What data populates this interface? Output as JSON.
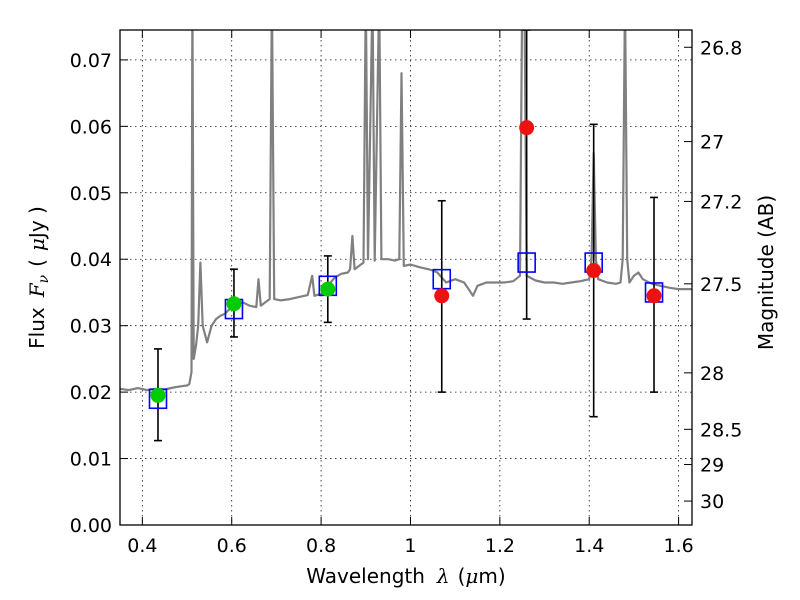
{
  "chart_data": {
    "type": "scatter",
    "title": "",
    "xlabel": "Wavelength",
    "xlabel_symbol": "λ",
    "xlabel_unit_open": "(",
    "xlabel_unit_mu": "μ",
    "xlabel_unit_rest": "m)",
    "ylabel": "Flux",
    "ylabel_symbol": "F",
    "ylabel_symbol_sub": "ν",
    "ylabel_unit_open": "(",
    "ylabel_unit_mu": "μ",
    "ylabel_unit_rest": "Jy )",
    "y2label": "Magnitude (AB)",
    "xlim": [
      0.35,
      1.63
    ],
    "ylim": [
      0.0,
      0.0745
    ],
    "grid": true,
    "x_ticks": [
      {
        "value": 0.4,
        "label": "0.4"
      },
      {
        "value": 0.6,
        "label": "0.6"
      },
      {
        "value": 0.8,
        "label": "0.8"
      },
      {
        "value": 1.0,
        "label": "1"
      },
      {
        "value": 1.2,
        "label": "1.2"
      },
      {
        "value": 1.4,
        "label": "1.4"
      },
      {
        "value": 1.6,
        "label": "1.6"
      }
    ],
    "y_ticks": [
      {
        "value": 0.0,
        "label": "0.00"
      },
      {
        "value": 0.01,
        "label": "0.01"
      },
      {
        "value": 0.02,
        "label": "0.02"
      },
      {
        "value": 0.03,
        "label": "0.03"
      },
      {
        "value": 0.04,
        "label": "0.04"
      },
      {
        "value": 0.05,
        "label": "0.05"
      },
      {
        "value": 0.06,
        "label": "0.06"
      },
      {
        "value": 0.07,
        "label": "0.07"
      }
    ],
    "y2_ticks": [
      {
        "flux": 0.0719,
        "label": "26.8"
      },
      {
        "flux": 0.0577,
        "label": "27"
      },
      {
        "flux": 0.0487,
        "label": "27.2"
      },
      {
        "flux": 0.0363,
        "label": "27.5"
      },
      {
        "flux": 0.0229,
        "label": "28"
      },
      {
        "flux": 0.0144,
        "label": "28.5"
      },
      {
        "flux": 0.0091,
        "label": "29"
      },
      {
        "flux": 0.0036,
        "label": "30"
      }
    ],
    "spectrum": {
      "color": "#808080",
      "points": [
        [
          0.35,
          0.0205
        ],
        [
          0.37,
          0.0203
        ],
        [
          0.39,
          0.0206
        ],
        [
          0.41,
          0.0203
        ],
        [
          0.43,
          0.0205
        ],
        [
          0.45,
          0.0204
        ],
        [
          0.47,
          0.0207
        ],
        [
          0.49,
          0.0209
        ],
        [
          0.5,
          0.021
        ],
        [
          0.505,
          0.0212
        ],
        [
          0.51,
          0.023
        ],
        [
          0.512,
          0.08
        ],
        [
          0.515,
          0.025
        ],
        [
          0.52,
          0.027
        ],
        [
          0.525,
          0.03
        ],
        [
          0.53,
          0.0395
        ],
        [
          0.535,
          0.03
        ],
        [
          0.545,
          0.0275
        ],
        [
          0.555,
          0.03
        ],
        [
          0.565,
          0.031
        ],
        [
          0.575,
          0.0315
        ],
        [
          0.585,
          0.0318
        ],
        [
          0.595,
          0.0325
        ],
        [
          0.61,
          0.0333
        ],
        [
          0.625,
          0.0335
        ],
        [
          0.64,
          0.033
        ],
        [
          0.655,
          0.0328
        ],
        [
          0.66,
          0.037
        ],
        [
          0.665,
          0.033
        ],
        [
          0.675,
          0.0335
        ],
        [
          0.685,
          0.034
        ],
        [
          0.69,
          0.08
        ],
        [
          0.695,
          0.034
        ],
        [
          0.71,
          0.0338
        ],
        [
          0.73,
          0.034
        ],
        [
          0.75,
          0.0343
        ],
        [
          0.77,
          0.0346
        ],
        [
          0.78,
          0.0375
        ],
        [
          0.785,
          0.0345
        ],
        [
          0.8,
          0.0348
        ],
        [
          0.815,
          0.036
        ],
        [
          0.83,
          0.0372
        ],
        [
          0.845,
          0.0378
        ],
        [
          0.86,
          0.038
        ],
        [
          0.865,
          0.0385
        ],
        [
          0.87,
          0.0435
        ],
        [
          0.875,
          0.0385
        ],
        [
          0.885,
          0.039
        ],
        [
          0.895,
          0.0395
        ],
        [
          0.9,
          0.08
        ],
        [
          0.905,
          0.04
        ],
        [
          0.915,
          0.08
        ],
        [
          0.92,
          0.0398
        ],
        [
          0.93,
          0.08
        ],
        [
          0.935,
          0.04
        ],
        [
          0.95,
          0.04
        ],
        [
          0.965,
          0.0398
        ],
        [
          0.975,
          0.04
        ],
        [
          0.98,
          0.068
        ],
        [
          0.985,
          0.039
        ],
        [
          1.0,
          0.0392
        ],
        [
          1.02,
          0.0388
        ],
        [
          1.04,
          0.0385
        ],
        [
          1.05,
          0.0383
        ],
        [
          1.06,
          0.038
        ],
        [
          1.08,
          0.0365
        ],
        [
          1.1,
          0.037
        ],
        [
          1.12,
          0.0365
        ],
        [
          1.13,
          0.0355
        ],
        [
          1.14,
          0.0345
        ],
        [
          1.15,
          0.036
        ],
        [
          1.17,
          0.0365
        ],
        [
          1.19,
          0.0365
        ],
        [
          1.21,
          0.0365
        ],
        [
          1.23,
          0.0367
        ],
        [
          1.245,
          0.0375
        ],
        [
          1.25,
          0.08
        ],
        [
          1.255,
          0.08
        ],
        [
          1.26,
          0.0375
        ],
        [
          1.28,
          0.0368
        ],
        [
          1.3,
          0.0365
        ],
        [
          1.32,
          0.0365
        ],
        [
          1.34,
          0.0363
        ],
        [
          1.36,
          0.0365
        ],
        [
          1.38,
          0.0367
        ],
        [
          1.4,
          0.037
        ],
        [
          1.405,
          0.04
        ],
        [
          1.41,
          0.056
        ],
        [
          1.415,
          0.04
        ],
        [
          1.42,
          0.037
        ],
        [
          1.44,
          0.0365
        ],
        [
          1.46,
          0.0363
        ],
        [
          1.47,
          0.0365
        ],
        [
          1.475,
          0.04
        ],
        [
          1.48,
          0.08
        ],
        [
          1.485,
          0.04
        ],
        [
          1.49,
          0.0365
        ],
        [
          1.5,
          0.0375
        ],
        [
          1.51,
          0.038
        ],
        [
          1.52,
          0.037
        ],
        [
          1.54,
          0.0363
        ],
        [
          1.56,
          0.036
        ],
        [
          1.58,
          0.0357
        ],
        [
          1.6,
          0.0355
        ],
        [
          1.63,
          0.0355
        ]
      ]
    },
    "model_points": {
      "marker": "open-square",
      "color": "#0000ff",
      "points": [
        [
          0.435,
          0.019
        ],
        [
          0.605,
          0.0325
        ],
        [
          0.815,
          0.036
        ],
        [
          1.07,
          0.037
        ],
        [
          1.26,
          0.0395
        ],
        [
          1.41,
          0.0395
        ],
        [
          1.545,
          0.035
        ]
      ]
    },
    "detections": {
      "marker": "circle",
      "color": "#00cc00",
      "points": [
        [
          0.435,
          0.0195,
          0.0127,
          0.0265
        ],
        [
          0.605,
          0.0333,
          0.0283,
          0.0385
        ],
        [
          0.815,
          0.0355,
          0.0305,
          0.0405
        ]
      ]
    },
    "upper_limits": {
      "marker": "circle",
      "color": "#ee1111",
      "points": [
        [
          1.07,
          0.0345,
          0.02,
          0.0488
        ],
        [
          1.26,
          0.0598,
          0.031,
          0.0745
        ],
        [
          1.41,
          0.0383,
          0.0163,
          0.0603
        ],
        [
          1.545,
          0.0345,
          0.02,
          0.0493
        ]
      ]
    }
  }
}
